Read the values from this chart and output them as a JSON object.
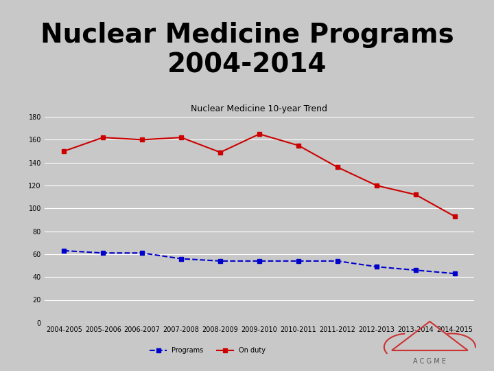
{
  "title": "Nuclear Medicine Programs\n2004-2014",
  "subtitle": "Nuclear Medicine 10-year Trend",
  "x_labels": [
    "2004-2005",
    "2005-2006",
    "2006-2007",
    "2007-2008",
    "2008-2009",
    "2009-2010",
    "2010-2011",
    "2011-2012",
    "2012-2013",
    "2013-2014",
    "2014-2015"
  ],
  "on_duty": [
    150,
    162,
    160,
    162,
    149,
    165,
    155,
    136,
    120,
    112,
    93
  ],
  "programs": [
    63,
    61,
    61,
    56,
    54,
    54,
    54,
    54,
    49,
    46,
    43
  ],
  "on_duty_color": "#cc0000",
  "programs_color": "#0000cc",
  "ylim": [
    0,
    180
  ],
  "yticks": [
    0,
    20,
    40,
    60,
    80,
    100,
    120,
    140,
    160,
    180
  ],
  "separator_color": "#cc0000",
  "chart_title_fontsize": 28,
  "grid_color": "#ffffff",
  "axis_fontsize": 7,
  "inner_title_fontsize": 9,
  "bg_color": "#c8c8c8"
}
